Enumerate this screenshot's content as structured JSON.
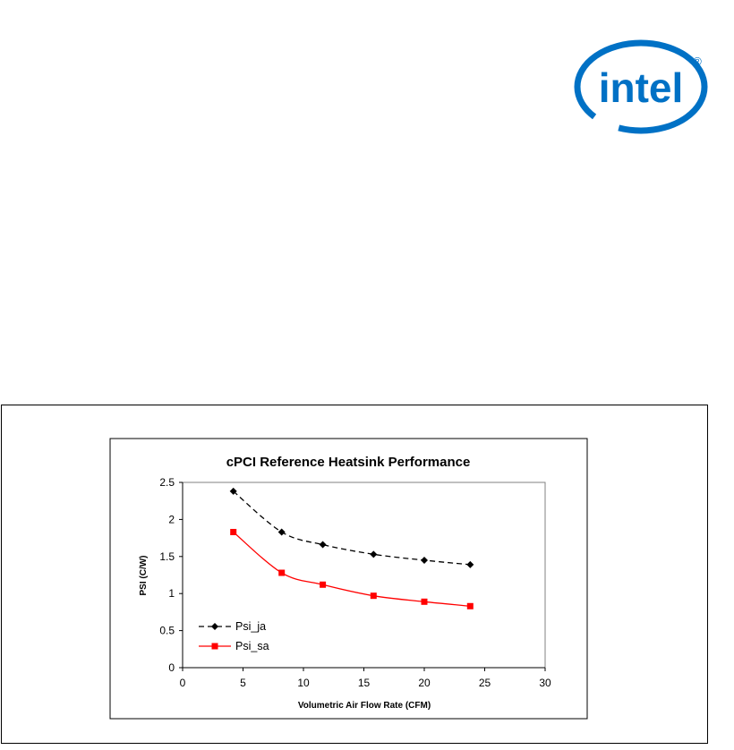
{
  "logo": {
    "text": "intel",
    "registered_mark": "®",
    "color": "#0071c5"
  },
  "chart_data": {
    "type": "line",
    "title": "cPCI Reference Heatsink Performance",
    "xlabel": "Volumetric Air Flow Rate (CFM)",
    "ylabel": "PSI (C/W)",
    "xlim": [
      0,
      30
    ],
    "ylim": [
      0,
      2.5
    ],
    "xticks": [
      "0",
      "5",
      "10",
      "15",
      "20",
      "25",
      "30"
    ],
    "yticks": [
      "0",
      "0.5",
      "1",
      "1.5",
      "2",
      "2.5"
    ],
    "grid": false,
    "legend_position": "lower-left",
    "series": [
      {
        "name": "Psi_ja",
        "color": "#000000",
        "line_style": "dashed",
        "marker": "diamond",
        "x": [
          4.2,
          8.2,
          11.6,
          15.8,
          20.0,
          23.8
        ],
        "y": [
          2.38,
          1.83,
          1.66,
          1.53,
          1.45,
          1.39
        ]
      },
      {
        "name": "Psi_sa",
        "color": "#ff0000",
        "line_style": "solid",
        "marker": "square",
        "x": [
          4.2,
          8.2,
          11.6,
          15.8,
          20.0,
          23.8
        ],
        "y": [
          1.83,
          1.28,
          1.12,
          0.97,
          0.89,
          0.83
        ]
      }
    ]
  }
}
